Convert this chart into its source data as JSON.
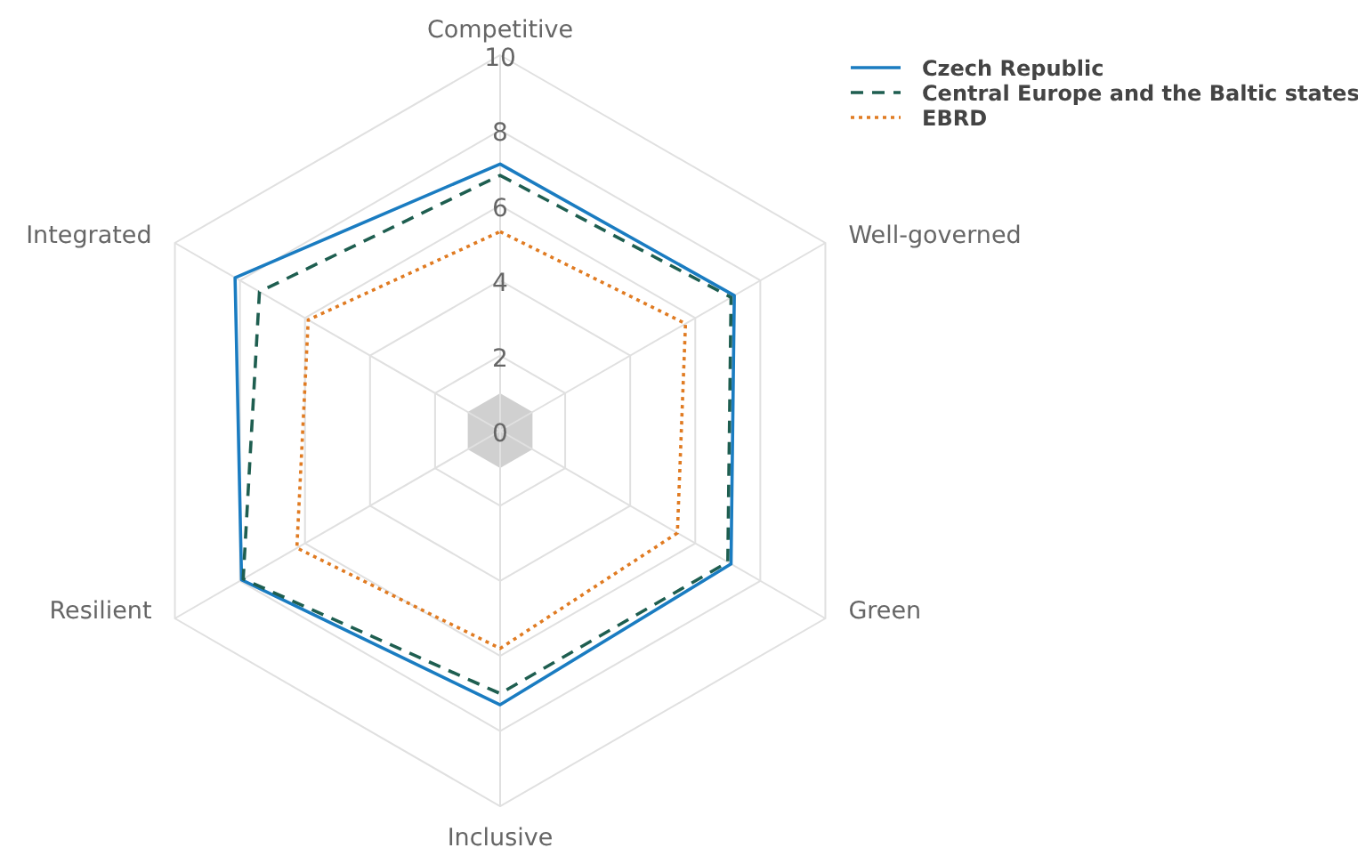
{
  "chart_data": {
    "type": "radar",
    "categories": [
      "Competitive",
      "Well-governed",
      "Green",
      "Inclusive",
      "Resilient",
      "Integrated"
    ],
    "series": [
      {
        "name": "Czech Republic",
        "color": "#1a7cc1",
        "line_style": "solid",
        "values": [
          7.1,
          7.2,
          7.1,
          7.3,
          7.95,
          8.15
        ]
      },
      {
        "name": "Central Europe and the Baltic states",
        "color": "#1e5e50",
        "line_style": "dashed",
        "values": [
          6.8,
          7.1,
          7.0,
          7.0,
          7.9,
          7.4
        ]
      },
      {
        "name": "EBRD",
        "color": "#e07b22",
        "line_style": "dotted",
        "values": [
          5.3,
          5.7,
          5.45,
          5.8,
          6.25,
          5.9
        ]
      }
    ],
    "ylim": [
      0,
      10
    ],
    "yticks": [
      0,
      2,
      4,
      6,
      8,
      10
    ],
    "grid": true,
    "legend": "top right",
    "marker": "none"
  }
}
